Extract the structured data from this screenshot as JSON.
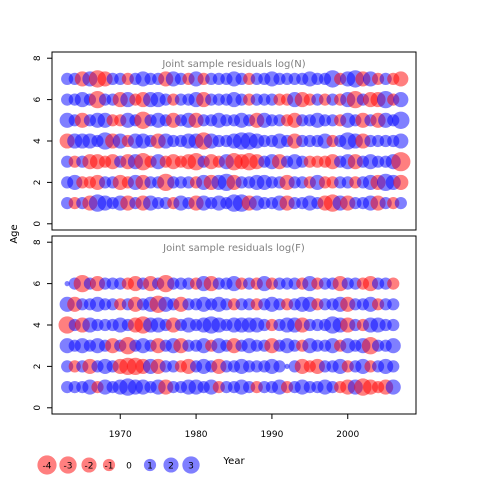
{
  "chart_data": {
    "type": "scatter",
    "ylabel": "Age",
    "xlabel": "Year",
    "x_ticks": [
      1970,
      1980,
      1990,
      2000
    ],
    "y_ticks": [
      0,
      2,
      4,
      6,
      8
    ],
    "xlim": [
      1961,
      2009
    ],
    "ylim": [
      -0.3,
      8.3
    ],
    "colors": {
      "positive": "#0000ff",
      "negative": "#ff0000",
      "axis": "#000000",
      "title": "#808080"
    },
    "encoding": "bubble area proportional to residual magnitude; color is residual sign",
    "legend": {
      "placement": "bottom-left",
      "values": [
        -4,
        -3,
        -2,
        -1,
        0,
        1,
        2,
        3
      ],
      "labels": [
        "-4",
        "-3",
        "-2",
        "-1",
        "0",
        "1",
        "2",
        "3"
      ]
    },
    "panels": [
      {
        "title": "Joint sample residuals log(N)",
        "years": [
          1963,
          2007
        ],
        "ages": [
          1,
          2,
          3,
          4,
          5,
          6,
          7
        ],
        "residuals": {
          "7": [
            1,
            1,
            -2,
            2,
            -3,
            -2,
            1,
            1,
            -1,
            1,
            2,
            1,
            1,
            -2,
            2,
            1,
            -1,
            2,
            -1,
            1,
            1,
            1,
            2,
            1,
            -1,
            1,
            1,
            2,
            1,
            1,
            1,
            1,
            2,
            1,
            1,
            3,
            -1,
            2,
            3,
            -2,
            2,
            -1,
            1,
            -1,
            -2
          ],
          "6": [
            1,
            1,
            2,
            1,
            -3,
            1,
            1,
            -2,
            2,
            -1,
            -2,
            2,
            2,
            1,
            -1,
            1,
            1,
            2,
            -2,
            1,
            1,
            1,
            2,
            1,
            -1,
            1,
            1,
            1,
            -1,
            -1,
            2,
            -2,
            -1,
            1,
            -1,
            1,
            -1,
            2,
            -3,
            1,
            -2,
            -2,
            3,
            -1,
            2
          ],
          "5": [
            2,
            1,
            -2,
            1,
            2,
            2,
            -1,
            -1,
            2,
            1,
            -3,
            1,
            2,
            1,
            -2,
            1,
            2,
            -2,
            1,
            1,
            2,
            1,
            1,
            2,
            1,
            -2,
            2,
            1,
            1,
            -1,
            -2,
            1,
            1,
            2,
            1,
            1,
            -1,
            2,
            1,
            -2,
            1,
            -2,
            2,
            1,
            3
          ],
          "4": [
            -2,
            2,
            2,
            2,
            1,
            3,
            -2,
            2,
            -1,
            2,
            2,
            1,
            -2,
            2,
            1,
            1,
            2,
            2,
            -3,
            2,
            1,
            1,
            2,
            3,
            3,
            2,
            1,
            1,
            2,
            1,
            -2,
            1,
            1,
            1,
            2,
            -1,
            1,
            3,
            2,
            -2,
            1,
            1,
            1,
            1,
            2
          ],
          "3": [
            1,
            -1,
            1,
            -2,
            -2,
            -1,
            -2,
            1,
            -2,
            2,
            -3,
            -1,
            2,
            -1,
            -2,
            -1,
            -2,
            -3,
            1,
            -2,
            -1,
            2,
            -3,
            -2,
            -3,
            -2,
            1,
            2,
            -2,
            1,
            2,
            1,
            -1,
            -1,
            -1,
            -2,
            1,
            2,
            -2,
            1,
            2,
            1,
            1,
            2,
            -4
          ],
          "2": [
            1,
            2,
            -1,
            -1,
            -2,
            1,
            1,
            -2,
            -1,
            2,
            -2,
            1,
            1,
            -3,
            1,
            1,
            1,
            -1,
            2,
            -2,
            2,
            3,
            -2,
            1,
            1,
            2,
            2,
            1,
            1,
            -2,
            1,
            1,
            -1,
            2,
            -1,
            -1,
            1,
            1,
            -1,
            1,
            2,
            -2,
            3,
            2,
            -2
          ],
          "1": [
            1,
            -1,
            1,
            -2,
            3,
            2,
            1,
            2,
            -2,
            1,
            -2,
            2,
            1,
            1,
            -1,
            2,
            1,
            -2,
            2,
            1,
            2,
            1,
            3,
            3,
            -2,
            2,
            1,
            1,
            2,
            -2,
            1,
            1,
            2,
            1,
            -2,
            -3,
            2,
            -2,
            1,
            1,
            2,
            -2,
            1,
            -1,
            1
          ]
        }
      },
      {
        "title": "Joint sample residuals log(F)",
        "years": [
          1963,
          2006
        ],
        "ages": [
          1,
          2,
          3,
          4,
          5,
          6
        ],
        "residuals": {
          "6": [
            0,
            1,
            -3,
            1,
            -2,
            1,
            1,
            1,
            -1,
            -2,
            1,
            -2,
            1,
            -3,
            1,
            1,
            1,
            -1,
            2,
            -2,
            1,
            1,
            2,
            -1,
            1,
            -1,
            2,
            -1,
            1,
            1,
            1,
            -1,
            2,
            -1,
            1,
            1,
            -2,
            1,
            1,
            -1,
            -2,
            1,
            1,
            -1
          ],
          "5": [
            2,
            -2,
            1,
            1,
            2,
            1,
            1,
            -1,
            1,
            -2,
            1,
            2,
            -3,
            2,
            1,
            -2,
            1,
            1,
            2,
            1,
            2,
            1,
            -1,
            1,
            1,
            -1,
            1,
            2,
            1,
            -1,
            1,
            2,
            2,
            -1,
            1,
            1,
            2,
            -2,
            1,
            1,
            2,
            -1,
            1,
            1
          ],
          "4": [
            -3,
            1,
            -2,
            2,
            1,
            1,
            1,
            2,
            1,
            -2,
            -3,
            2,
            2,
            1,
            -2,
            1,
            2,
            1,
            2,
            3,
            2,
            1,
            2,
            2,
            2,
            2,
            1,
            -1,
            1,
            2,
            2,
            -2,
            1,
            1,
            1,
            3,
            2,
            -2,
            1,
            -1,
            2,
            2,
            1,
            1
          ],
          "3": [
            2,
            1,
            2,
            1,
            2,
            1,
            -2,
            1,
            -3,
            1,
            2,
            1,
            -2,
            1,
            2,
            -2,
            1,
            1,
            2,
            -1,
            2,
            1,
            -2,
            1,
            2,
            1,
            1,
            -2,
            1,
            2,
            1,
            -1,
            2,
            1,
            1,
            2,
            -1,
            2,
            1,
            2,
            -3,
            1,
            1,
            2
          ],
          "2": [
            1,
            -1,
            1,
            -2,
            1,
            2,
            1,
            -2,
            -3,
            -3,
            -2,
            2,
            -2,
            1,
            1,
            -1,
            -2,
            1,
            2,
            1,
            -2,
            1,
            1,
            2,
            1,
            1,
            1,
            2,
            1,
            0,
            1,
            -2,
            -1,
            -2,
            1,
            1,
            2,
            -1,
            1,
            2,
            -1,
            1,
            2,
            1
          ],
          "1": [
            1,
            1,
            1,
            2,
            -1,
            2,
            1,
            2,
            3,
            2,
            2,
            1,
            2,
            -2,
            1,
            1,
            2,
            2,
            1,
            2,
            -1,
            1,
            1,
            2,
            1,
            -1,
            1,
            1,
            2,
            -1,
            1,
            2,
            1,
            1,
            2,
            1,
            -1,
            -2,
            2,
            -3,
            -2,
            -1,
            -2,
            2
          ]
        }
      }
    ]
  }
}
